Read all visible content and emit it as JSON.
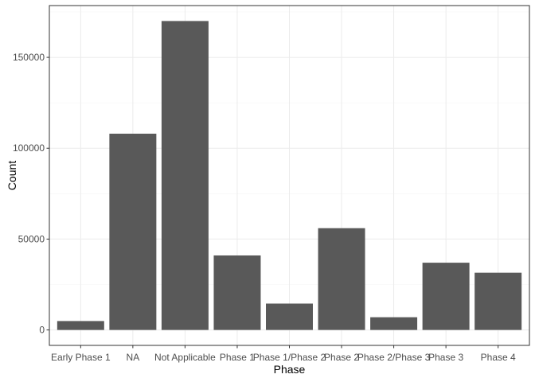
{
  "chart_data": {
    "type": "bar",
    "title": "",
    "xlabel": "Phase",
    "ylabel": "Count",
    "categories": [
      "Early Phase 1",
      "NA",
      "Not Applicable",
      "Phase 1",
      "Phase 1/Phase 2",
      "Phase 2",
      "Phase 2/Phase 3",
      "Phase 3",
      "Phase 4"
    ],
    "values": [
      4900,
      108000,
      170000,
      41000,
      14500,
      56000,
      7000,
      37000,
      31500
    ],
    "ylim": [
      -8500,
      178500
    ],
    "yticks": [
      0,
      50000,
      100000,
      150000
    ],
    "ytick_labels": [
      "0",
      "50000",
      "100000",
      "150000"
    ],
    "grid": true,
    "legend": "none",
    "colors": {
      "bar": "#595959",
      "grid_major": "#ebebeb",
      "grid_minor": "#f5f5f5",
      "panel_border": "#333333",
      "tick_text": "#4d4d4d",
      "axis_title": "#000000"
    }
  }
}
